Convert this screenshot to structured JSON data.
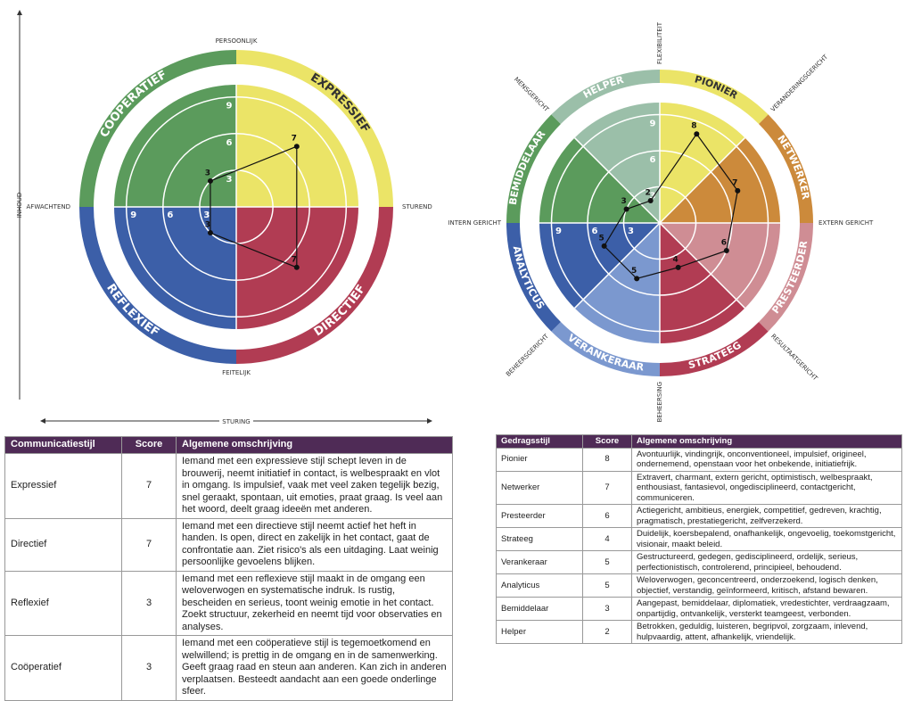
{
  "chart_data": [
    {
      "type": "radar",
      "categories": [
        "EXPRESSIEF",
        "DIRECTIEF",
        "REFLEXIEF",
        "COÖPERATIEF"
      ],
      "values": [
        7,
        7,
        3,
        3
      ],
      "colors": [
        "#ebe467",
        "#b13c53",
        "#3c5fa8",
        "#5b9b5c"
      ],
      "rlim": [
        0,
        10
      ],
      "rticks": [
        3,
        6,
        9
      ],
      "axis_labels": [
        "PERSOONLIJK",
        "STUREND",
        "FEITELIJK",
        "AFWACHTEND"
      ],
      "x_axis_label": "STURING",
      "y_axis_label": "INHOUD"
    },
    {
      "type": "radar",
      "categories": [
        "PIONIER",
        "NETWERKER",
        "PRESTEERDER",
        "STRATEEG",
        "VERANKERAAR",
        "ANALYTICUS",
        "BEMIDDELAAR",
        "HELPER"
      ],
      "values": [
        8,
        7,
        6,
        4,
        5,
        5,
        3,
        2
      ],
      "colors": [
        "#ebe467",
        "#cc8a3b",
        "#cf8d94",
        "#b13c53",
        "#7b98cf",
        "#3c5fa8",
        "#5b9b5c",
        "#9bbfa9"
      ],
      "rlim": [
        0,
        10
      ],
      "rticks": [
        3,
        6,
        9
      ],
      "axis_labels": [
        "FLEXIBILITEIT",
        "VERANDERINGSGERICHT",
        "EXTERN GERICHT",
        "RESULTAATGERICHT",
        "BEHEERSING",
        "BEHEERSGERICHT",
        "INTERN GERICHT",
        "MENSGERICHT"
      ]
    }
  ],
  "tables": [
    {
      "columns": [
        "Communicatiestijl",
        "Score",
        "Algemene omschrijving"
      ],
      "rows": [
        {
          "name": "Expressief",
          "description": "Iemand met een expressieve stijl schept leven in de brouwerij, neemt initiatief in contact, is welbespraakt en vlot in omgang. Is impulsief, vaak met veel zaken tegelijk bezig, snel geraakt, spontaan, uit emoties, praat graag. Is veel aan het woord, deelt graag ideeën met anderen."
        },
        {
          "name": "Directief",
          "description": "Iemand met een directieve stijl neemt actief het heft in handen. Is open, direct en zakelijk in het contact, gaat de confrontatie aan. Ziet risico's als een uitdaging. Laat weinig persoonlijke gevoelens blijken."
        },
        {
          "name": "Reflexief",
          "description": "Iemand met een reflexieve stijl maakt in de omgang een weloverwogen en systematische indruk. Is rustig, bescheiden en serieus, toont weinig emotie in het contact. Zoekt structuur, zekerheid en neemt tijd voor observaties en analyses."
        },
        {
          "name": "Coöperatief",
          "description": "Iemand met een coöperatieve stijl is tegemoetkomend en welwillend; is prettig in de omgang en in de samenwerking. Geeft graag raad en steun aan anderen. Kan zich in anderen verplaatsen. Besteedt aandacht aan een goede onderlinge sfeer."
        }
      ]
    },
    {
      "columns": [
        "Gedragsstijl",
        "Score",
        "Algemene omschrijving"
      ],
      "rows": [
        {
          "name": "Pionier",
          "description": "Avontuurlijk, vindingrijk, onconventioneel, impulsief, origineel, ondernemend, openstaan voor het onbekende, initiatiefrijk."
        },
        {
          "name": "Netwerker",
          "description": "Extravert, charmant, extern gericht, optimistisch, welbespraakt, enthousiast, fantasievol, ongedisciplineerd, contactgericht, communiceren."
        },
        {
          "name": "Presteerder",
          "description": "Actiegericht, ambitieus, energiek, competitief, gedreven, krachtig, pragmatisch, prestatiegericht, zelfverzekerd."
        },
        {
          "name": "Strateeg",
          "description": "Duidelijk, koersbepalend, onafhankelijk, ongevoelig, toekomstgericht, visionair, maakt beleid."
        },
        {
          "name": "Verankeraar",
          "description": "Gestructureerd, gedegen, gedisciplineerd, ordelijk, serieus, perfectionistisch, controlerend, principieel, behoudend."
        },
        {
          "name": "Analyticus",
          "description": "Weloverwogen, geconcentreerd, onderzoekend, logisch denken, objectief, verstandig, geïnformeerd, kritisch, afstand bewaren."
        },
        {
          "name": "Bemiddelaar",
          "description": "Aangepast, bemiddelaar, diplomatiek, vredestichter, verdraagzaam, onpartijdig, ontvankelijk, versterkt teamgeest, verbonden."
        },
        {
          "name": "Helper",
          "description": "Betrokken, geduldig, luisteren, begripvol, zorgzaam, inlevend, hulpvaardig, attent, afhankelijk, vriendelijk."
        }
      ]
    }
  ]
}
